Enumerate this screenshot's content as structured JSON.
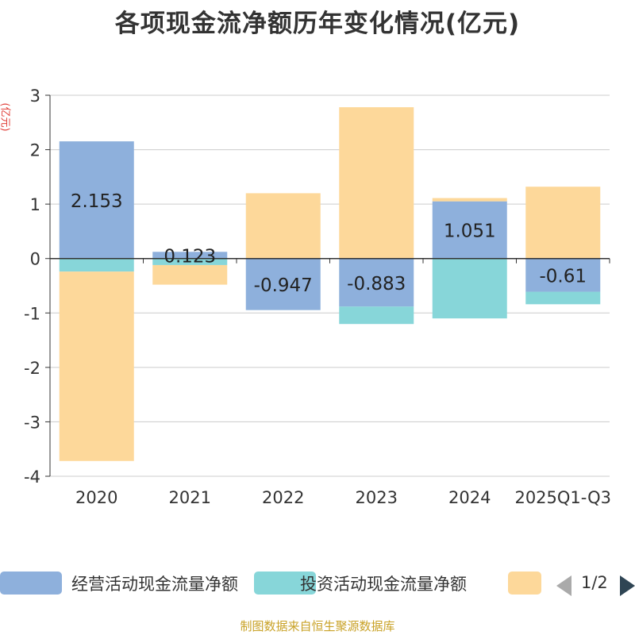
{
  "title": "各项现金流净额历年变化情况(亿元)",
  "unit_label": "(亿元)",
  "source": "制图数据来自恒生聚源数据库",
  "legend": {
    "items": [
      {
        "label": "经营活动现金流量净额",
        "color": "#8eb0dc"
      },
      {
        "label": "投资活动现金流量净额",
        "color": "#87d6d9"
      },
      {
        "label": "",
        "color": "#fdd89a"
      }
    ],
    "page": "1/2"
  },
  "chart_data": {
    "type": "bar",
    "stacked": true,
    "title": "各项现金流净额历年变化情况(亿元)",
    "ylabel": "(亿元)",
    "ylim": [
      -4,
      3
    ],
    "yticks": [
      3,
      2,
      1,
      0,
      -1,
      -2,
      -3,
      -4
    ],
    "categories": [
      "2020",
      "2021",
      "2022",
      "2023",
      "2024",
      "2025Q1-Q3"
    ],
    "series": [
      {
        "name": "经营活动现金流量净额",
        "color": "#8eb0dc",
        "values": [
          2.153,
          0.123,
          -0.947,
          -0.883,
          1.051,
          -0.61
        ],
        "labels": [
          "2.153",
          "0.123",
          "-0.947",
          "-0.883",
          "1.051",
          "-0.61"
        ]
      },
      {
        "name": "投资活动现金流量净额",
        "color": "#87d6d9",
        "values": [
          -0.24,
          -0.12,
          0.0,
          -0.32,
          -1.1,
          -0.23
        ]
      },
      {
        "name": "",
        "color": "#fdd89a",
        "values": [
          -3.48,
          -0.36,
          1.2,
          2.78,
          0.06,
          1.32
        ]
      }
    ]
  }
}
